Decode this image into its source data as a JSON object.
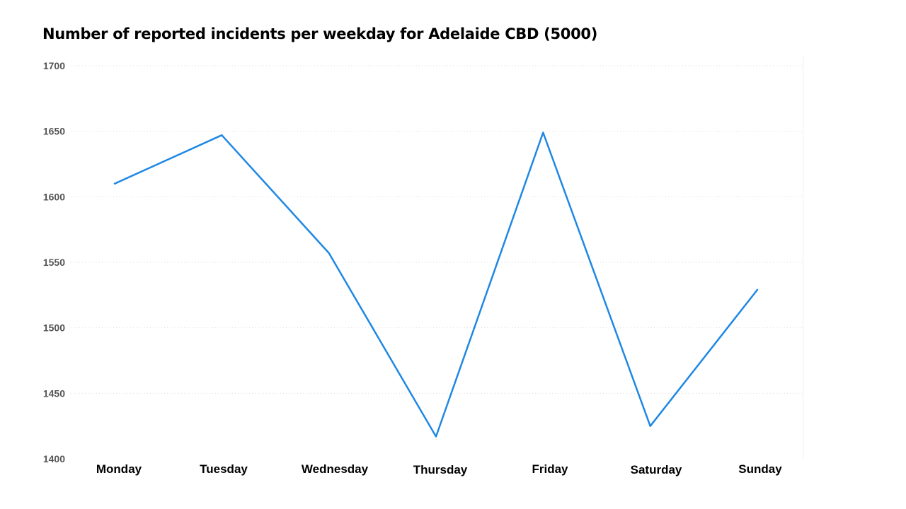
{
  "chart_data": {
    "type": "line",
    "title": "Number of reported incidents per weekday for Adelaide CBD (5000)",
    "xlabel": "",
    "ylabel": "",
    "categories": [
      "Monday",
      "Tuesday",
      "Wednesday",
      "Thursday",
      "Friday",
      "Saturday",
      "Sunday"
    ],
    "series": [
      {
        "values": [
          1610,
          1647,
          1557,
          1417,
          1649,
          1425,
          1529
        ]
      }
    ],
    "ylim": [
      1400,
      1700
    ],
    "yticks": [
      1400,
      1450,
      1500,
      1550,
      1600,
      1650,
      1700
    ],
    "grid": true,
    "legend": "none",
    "colors": {
      "line": "#1E88E5",
      "grid": "#dddddd",
      "y_tick_text": "#555555",
      "x_tick_text": "#000000"
    }
  }
}
